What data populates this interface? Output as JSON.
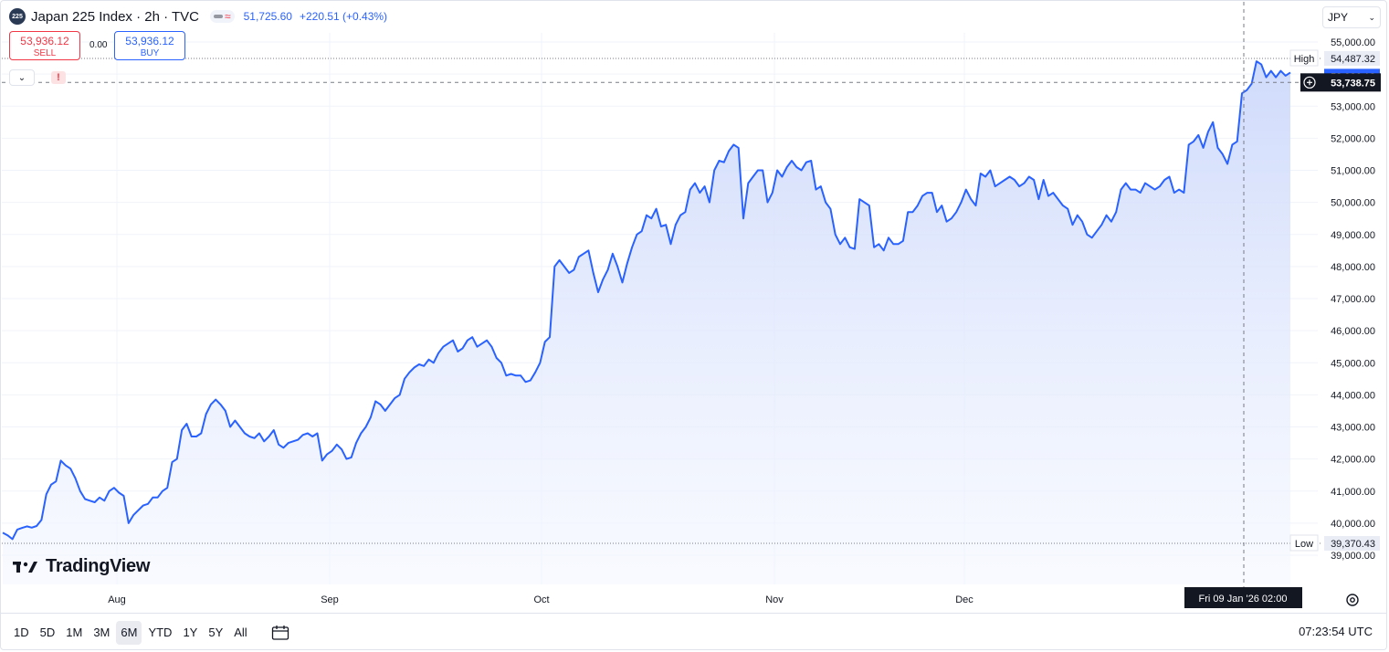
{
  "header": {
    "badge": "225",
    "title": "Japan 225 Index · 2h · TVC",
    "ind_symbol": "≈",
    "last_price": "51,725.60",
    "change": "+220.51 (+0.43%)"
  },
  "trade": {
    "sell_price": "53,936.12",
    "sell_label": "SELL",
    "spread": "0.00",
    "buy_price": "53,936.12",
    "buy_label": "BUY"
  },
  "toolbar": {
    "collapse_glyph": "⌄",
    "alert_glyph": "!"
  },
  "currency": {
    "value": "JPY"
  },
  "brand": {
    "name": "TradingView"
  },
  "price_scale": {
    "ticks": [
      "55,000.00",
      "54,000.00",
      "53,000.00",
      "52,000.00",
      "51,000.00",
      "50,000.00",
      "49,000.00",
      "48,000.00",
      "47,000.00",
      "46,000.00",
      "45,000.00",
      "44,000.00",
      "43,000.00",
      "42,000.00",
      "41,000.00",
      "40,000.00",
      "39,000.00"
    ],
    "high_label": "High",
    "high_value": "54,487.32",
    "low_label": "Low",
    "low_value": "39,370.43",
    "cursor_value": "53,738.75",
    "hidden_last_value": "53,936.12"
  },
  "time_scale": {
    "ticks": [
      "Aug",
      "Sep",
      "Oct",
      "Nov",
      "Dec"
    ],
    "cursor_label": "Fri 09 Jan '26   02:00"
  },
  "bottom": {
    "ranges": [
      "1D",
      "5D",
      "1M",
      "3M",
      "6M",
      "YTD",
      "1Y",
      "5Y",
      "All"
    ],
    "active_range": "6M",
    "clock": "07:23:54 UTC"
  },
  "colors": {
    "line": "#2962ff",
    "fill_top": "#cdd9fb",
    "fill_bottom": "#f4f7ff",
    "sell": "#f23645",
    "buy": "#2962ff"
  },
  "icons": {
    "compare": "compare-icon",
    "settings": "gear-icon",
    "alert": "alert-icon",
    "crosshair": "crosshair-plus-icon"
  },
  "chart_data": {
    "type": "area",
    "title": "Japan 225 Index · 2h · TVC",
    "xlabel": "",
    "ylabel": "",
    "ylim": [
      38600,
      55300
    ],
    "grid": true,
    "x_ticks": [
      "Aug",
      "Sep",
      "Oct",
      "Nov",
      "Dec"
    ],
    "series": [
      {
        "values": [
          39700,
          39620,
          39500,
          39800,
          39850,
          39900,
          39860,
          39910,
          40100,
          40900,
          41200,
          41300,
          41950,
          41800,
          41700,
          41400,
          41000,
          40750,
          40700,
          40650,
          40800,
          40700,
          41000,
          41100,
          40950,
          40850,
          40000,
          40250,
          40400,
          40550,
          40600,
          40800,
          40800,
          41000,
          41100,
          41900,
          42000,
          42900,
          43100,
          42700,
          42700,
          42800,
          43400,
          43700,
          43850,
          43700,
          43500,
          43000,
          43200,
          43000,
          42800,
          42700,
          42650,
          42800,
          42550,
          42700,
          42900,
          42450,
          42350,
          42500,
          42550,
          42600,
          42750,
          42800,
          42700,
          42800,
          41950,
          42150,
          42250,
          42450,
          42300,
          42000,
          42050,
          42500,
          42800,
          43000,
          43300,
          43800,
          43700,
          43500,
          43700,
          43900,
          44000,
          44500,
          44700,
          44850,
          44950,
          44900,
          45100,
          45000,
          45300,
          45500,
          45600,
          45700,
          45350,
          45450,
          45700,
          45800,
          45500,
          45600,
          45700,
          45500,
          45150,
          45000,
          44600,
          44650,
          44600,
          44600,
          44400,
          44450,
          44700,
          45000,
          45650,
          45800,
          48000,
          48200,
          48000,
          47800,
          47900,
          48300,
          48400,
          48500,
          47800,
          47200,
          47600,
          47900,
          48400,
          48000,
          47500,
          48100,
          48600,
          49000,
          49100,
          49600,
          49500,
          49800,
          49250,
          49300,
          48700,
          49300,
          49600,
          49700,
          50400,
          50600,
          50300,
          50500,
          50000,
          51000,
          51300,
          51250,
          51600,
          51800,
          51700,
          49500,
          50600,
          50800,
          51000,
          51000,
          50000,
          50300,
          51000,
          50800,
          51100,
          51300,
          51100,
          51000,
          51250,
          51300,
          50400,
          50500,
          50000,
          49800,
          49000,
          48700,
          48900,
          48600,
          48550,
          50100,
          50000,
          49900,
          48600,
          48700,
          48500,
          48900,
          48700,
          48700,
          48800,
          49700,
          49700,
          49900,
          50200,
          50300,
          50300,
          49700,
          49900,
          49400,
          49500,
          49700,
          50000,
          50400,
          50100,
          49900,
          50900,
          50800,
          51000,
          50500,
          50600,
          50700,
          50800,
          50700,
          50500,
          50600,
          50800,
          50700,
          50100,
          50700,
          50200,
          50300,
          50100,
          49900,
          49800,
          49300,
          49600,
          49400,
          49000,
          48900,
          49100,
          49300,
          49600,
          49400,
          49700,
          50400,
          50600,
          50400,
          50400,
          50300,
          50600,
          50500,
          50400,
          50500,
          50700,
          50800,
          50300,
          50400,
          50300,
          51800,
          51900,
          52100,
          51700,
          52200,
          52500,
          51700,
          51500,
          51200,
          51800,
          51900,
          53400,
          53500,
          53700,
          54400,
          54300,
          53900,
          54100,
          53900,
          54100,
          53950,
          54050
        ]
      }
    ]
  }
}
